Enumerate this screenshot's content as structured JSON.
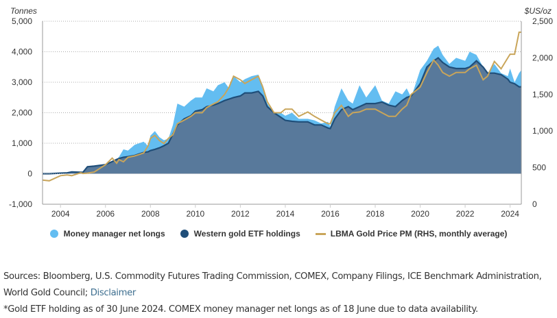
{
  "chart_data": {
    "type": "area",
    "title": "",
    "y_left_label": "Tonnes",
    "y_right_label": "$US/oz",
    "ylim_left": [
      -1000,
      5000
    ],
    "ylim_right": [
      0,
      2500
    ],
    "y_left_ticks": [
      "5,000",
      "4,000",
      "3,000",
      "2,000",
      "1,000",
      "0",
      "-1,000"
    ],
    "y_left_tick_values": [
      5000,
      4000,
      3000,
      2000,
      1000,
      0,
      -1000
    ],
    "y_right_ticks": [
      "2,500",
      "2,000",
      "1,500",
      "1,000",
      "500",
      "0"
    ],
    "y_right_tick_values": [
      2500,
      2000,
      1500,
      1000,
      500,
      0
    ],
    "x_range": [
      2003.2,
      2024.5
    ],
    "x_ticks": [
      "2004",
      "2006",
      "2008",
      "2010",
      "2012",
      "2014",
      "2016",
      "2018",
      "2020",
      "2022",
      "2024"
    ],
    "x_tick_values": [
      2004,
      2006,
      2008,
      2010,
      2012,
      2014,
      2016,
      2018,
      2020,
      2022,
      2024
    ],
    "grid": true,
    "legend_position": "bottom",
    "x": [
      2003.2,
      2003.5,
      2004.0,
      2004.3,
      2004.5,
      2004.9,
      2005.0,
      2005.2,
      2005.5,
      2006.0,
      2006.3,
      2006.5,
      2006.6,
      2006.8,
      2007.0,
      2007.3,
      2007.5,
      2007.7,
      2007.9,
      2008.0,
      2008.2,
      2008.4,
      2008.6,
      2008.8,
      2009.0,
      2009.2,
      2009.5,
      2009.8,
      2010.0,
      2010.3,
      2010.5,
      2010.8,
      2011.0,
      2011.3,
      2011.5,
      2011.7,
      2012.0,
      2012.2,
      2012.5,
      2012.8,
      2013.0,
      2013.2,
      2013.5,
      2013.8,
      2014.0,
      2014.3,
      2014.6,
      2015.0,
      2015.3,
      2015.6,
      2015.9,
      2016.0,
      2016.2,
      2016.5,
      2016.8,
      2017.0,
      2017.3,
      2017.6,
      2018.0,
      2018.3,
      2018.6,
      2018.9,
      2019.2,
      2019.4,
      2019.6,
      2020.0,
      2020.3,
      2020.6,
      2020.8,
      2021.0,
      2021.3,
      2021.6,
      2022.0,
      2022.2,
      2022.5,
      2022.8,
      2023.0,
      2023.3,
      2023.6,
      2023.9,
      2024.0,
      2024.2,
      2024.4,
      2024.5
    ],
    "series": [
      {
        "name": "Western gold ETF holdings",
        "axis": "left",
        "color": "#1f4e79",
        "values": [
          0,
          0,
          20,
          30,
          60,
          50,
          50,
          230,
          250,
          300,
          400,
          470,
          500,
          540,
          560,
          600,
          650,
          700,
          720,
          760,
          800,
          850,
          920,
          1000,
          1300,
          1600,
          1800,
          1900,
          2050,
          2100,
          2200,
          2250,
          2300,
          2400,
          2450,
          2500,
          2550,
          2650,
          2650,
          2700,
          2550,
          2200,
          2000,
          1850,
          1750,
          1720,
          1700,
          1700,
          1600,
          1600,
          1500,
          1480,
          1800,
          2100,
          2200,
          2100,
          2200,
          2300,
          2300,
          2350,
          2250,
          2200,
          2400,
          2500,
          2550,
          2950,
          3500,
          3700,
          3800,
          3650,
          3500,
          3450,
          3450,
          3500,
          3700,
          3500,
          3300,
          3300,
          3250,
          3100,
          3000,
          2950,
          2850,
          2850
        ]
      },
      {
        "name": "Money manager net longs",
        "axis": "left",
        "color": "#63bdf1",
        "values": [
          0,
          0,
          20,
          30,
          60,
          50,
          50,
          230,
          250,
          300,
          400,
          470,
          550,
          800,
          760,
          950,
          1000,
          1050,
          900,
          1250,
          1400,
          1200,
          1100,
          1150,
          1600,
          2300,
          2200,
          2400,
          2500,
          2500,
          2800,
          2700,
          2900,
          3000,
          2800,
          3200,
          3000,
          3100,
          3200,
          3250,
          2900,
          2300,
          2000,
          2000,
          1900,
          2000,
          1800,
          1800,
          1750,
          1650,
          1700,
          1550,
          2200,
          2800,
          2400,
          2300,
          2900,
          2500,
          2900,
          2400,
          2300,
          2700,
          2600,
          2800,
          2500,
          3400,
          3700,
          4100,
          4200,
          3900,
          3600,
          3800,
          3700,
          4000,
          3900,
          3500,
          3300,
          3600,
          3300,
          3200,
          3450,
          3000,
          3300,
          3400
        ]
      },
      {
        "name": "LBMA Gold Price PM (RHS, monthly average)",
        "axis": "right",
        "color": "#c9a55a",
        "values": [
          330,
          320,
          390,
          400,
          390,
          430,
          420,
          425,
          440,
          540,
          630,
          560,
          610,
          580,
          640,
          660,
          680,
          700,
          800,
          900,
          940,
          870,
          830,
          900,
          950,
          1100,
          1150,
          1200,
          1250,
          1250,
          1320,
          1370,
          1400,
          1500,
          1600,
          1750,
          1700,
          1650,
          1700,
          1750,
          1600,
          1400,
          1250,
          1250,
          1300,
          1300,
          1200,
          1260,
          1200,
          1150,
          1100,
          1100,
          1250,
          1350,
          1200,
          1250,
          1260,
          1300,
          1300,
          1250,
          1200,
          1200,
          1300,
          1350,
          1500,
          1600,
          1800,
          1970,
          1900,
          1800,
          1750,
          1800,
          1800,
          1850,
          1900,
          1700,
          1750,
          1950,
          1850,
          2000,
          2050,
          2050,
          2350,
          2350
        ]
      }
    ]
  },
  "legend": {
    "items": [
      {
        "label": "Money manager net longs",
        "color": "#63bdf1",
        "shape": "dot"
      },
      {
        "label": "Western gold ETF holdings",
        "color": "#1f4e79",
        "shape": "dot"
      },
      {
        "label": "LBMA Gold Price PM (RHS, monthly average)",
        "color": "#c9a55a",
        "shape": "line"
      }
    ]
  },
  "notes": {
    "sources_prefix": "Sources: Bloomberg, U.S. Commodity Futures Trading Commission, COMEX, Company Filings, ICE Benchmark Administration, World Gold Council; ",
    "disclaimer_link": "Disclaimer",
    "footnote": "*Gold ETF holding as of 30 June 2024. COMEX money manager net longs as of 18 June due to data availability."
  },
  "colors": {
    "etf_fill": "#58799b",
    "etf_line": "#1f4e79",
    "mm_fill": "#63bdf1",
    "gold_line": "#c9a55a",
    "grid": "#aaaaaa",
    "axis": "#999999"
  }
}
